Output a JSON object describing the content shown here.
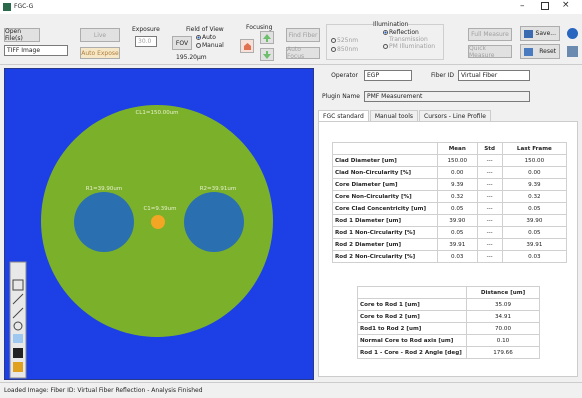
{
  "window": {
    "title": "FGC-G"
  },
  "toolbar": {
    "open": "Open File(s)",
    "file_type": "TIFF Image",
    "live": "Live",
    "auto_expose": "Auto Expose",
    "exposure_label": "Exposure",
    "exposure_value": "30.0",
    "fov_label": "Field of View",
    "fov_button": "FOV",
    "fov_auto": "Auto",
    "fov_manual": "Manual",
    "fov_value": "195.20µm",
    "focusing_label": "Focusing",
    "find_fiber": "Find Fiber",
    "auto_focus": "Auto Focus",
    "illumination_label": "Illumination",
    "nm525": "525nm",
    "nm850": "850nm",
    "reflection": "Reflection",
    "transmission": "Transmission",
    "pm_illumination": "PM Illumination",
    "full_measure": "Full Measure",
    "quick_measure": "Quick Measure",
    "save": "Save...",
    "reset": "Reset"
  },
  "image": {
    "clad_label": "CL1=150.00um",
    "rod1_label": "R1=39.90um",
    "rod2_label": "R2=39.91um",
    "core_label": "C1=9.39um"
  },
  "info": {
    "operator_label": "Operator",
    "operator": "EGP",
    "fiber_id_label": "Fiber ID",
    "fiber_id": "Virtual Fiber",
    "plugin_label": "Plugin Name",
    "plugin": "PMF Measurement"
  },
  "tabs": [
    "FGC standard",
    "Manual tools",
    "Cursors - Line Profile"
  ],
  "table": {
    "headers": [
      "Mean",
      "Std",
      "Last Frame"
    ],
    "rows": [
      [
        "Clad Diameter [um]",
        "150.00",
        "---",
        "150.00"
      ],
      [
        "Clad Non-Circularity [%]",
        "0.00",
        "---",
        "0.00"
      ],
      [
        "Core Diameter [um]",
        "9.39",
        "---",
        "9.39"
      ],
      [
        "Core Non-Circularity [%]",
        "0.32",
        "---",
        "0.32"
      ],
      [
        "Core Clad Concentricity [um]",
        "0.05",
        "---",
        "0.05"
      ],
      [
        "Rod 1 Diameter [um]",
        "39.90",
        "---",
        "39.90"
      ],
      [
        "Rod 1 Non-Circularity [%]",
        "0.05",
        "---",
        "0.05"
      ],
      [
        "Rod 2 Diameter [um]",
        "39.91",
        "---",
        "39.91"
      ],
      [
        "Rod 2 Non-Circularity [%]",
        "0.03",
        "---",
        "0.03"
      ]
    ]
  },
  "table2": {
    "headers": [
      "Distance [um]"
    ],
    "rows": [
      [
        "Core to Rod 1 [um]",
        "35.09"
      ],
      [
        "Core to Rod 2 [um]",
        "34.91"
      ],
      [
        "Rod1 to Rod 2 [um]",
        "70.00"
      ],
      [
        "Normal Core to Rod axis [um]",
        "0.10"
      ],
      [
        "Rod 1 - Core - Rod 2 Angle [deg]",
        "179.66"
      ]
    ]
  },
  "status": "Loaded Image: Fiber ID: Virtual Fiber Reflection - Analysis Finished"
}
